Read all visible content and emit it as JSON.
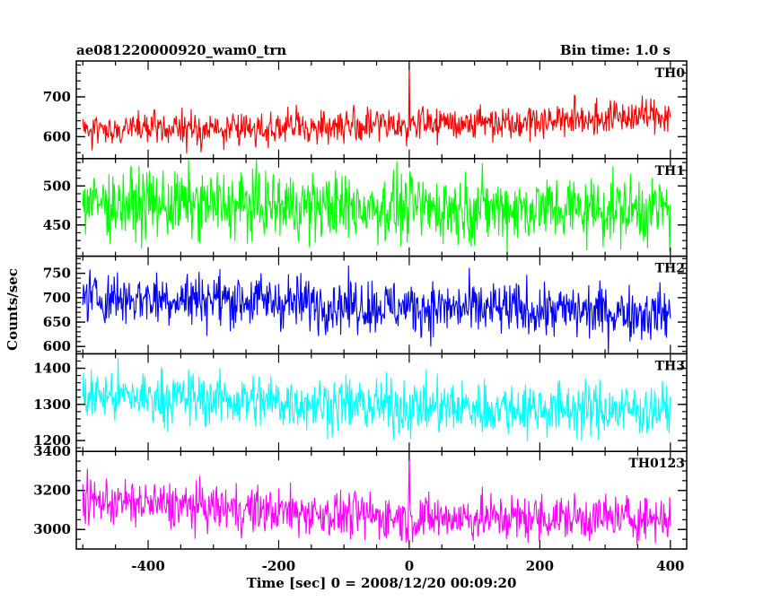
{
  "chart_data": {
    "type": "line",
    "title": "ae081220000920_wam0_trn",
    "subtitle": "Bin time: 1.0 s",
    "xlabel": "Time [sec] 0 = 2008/12/20 00:09:20",
    "ylabel": "Counts/sec",
    "xlim": [
      -510,
      425
    ],
    "x_range": [
      -500,
      400
    ],
    "x_step": 1,
    "x_ticks": [
      -400,
      -200,
      0,
      200,
      400
    ],
    "x_minor_step": 50,
    "panels": [
      {
        "name": "TH0",
        "color": "#ff0000",
        "ylim": [
          545,
          790
        ],
        "y_ticks": [
          600,
          700
        ],
        "y_minor_step": 20,
        "baseline": [
          [
            -500,
            620
          ],
          [
            -300,
            618
          ],
          [
            0,
            632
          ],
          [
            200,
            640
          ],
          [
            400,
            655
          ]
        ],
        "noise": 22,
        "spikes": [
          {
            "x": 0,
            "y": 790
          }
        ]
      },
      {
        "name": "TH1",
        "color": "#00ff00",
        "ylim": [
          410,
          535
        ],
        "y_ticks": [
          450,
          500
        ],
        "y_minor_step": 10,
        "baseline": [
          [
            -500,
            478
          ],
          [
            0,
            472
          ],
          [
            400,
            470
          ]
        ],
        "noise": 22,
        "spikes": []
      },
      {
        "name": "TH2",
        "color": "#0000ff",
        "ylim": [
          585,
          785
        ],
        "y_ticks": [
          600,
          650,
          700,
          750
        ],
        "y_minor_step": 10,
        "baseline": [
          [
            -500,
            700
          ],
          [
            -300,
            698
          ],
          [
            0,
            680
          ],
          [
            400,
            668
          ]
        ],
        "noise": 28,
        "spikes": []
      },
      {
        "name": "TH3",
        "color": "#00ffff",
        "ylim": [
          1170,
          1440
        ],
        "y_ticks": [
          1200,
          1300,
          1400
        ],
        "y_minor_step": 20,
        "baseline": [
          [
            -500,
            1325
          ],
          [
            -300,
            1315
          ],
          [
            0,
            1292
          ],
          [
            400,
            1285
          ]
        ],
        "noise": 38,
        "spikes": []
      },
      {
        "name": "TH0123",
        "color": "#ff00ff",
        "ylim": [
          2900,
          3400
        ],
        "y_ticks": [
          3000,
          3200,
          3400
        ],
        "y_minor_step": 50,
        "baseline": [
          [
            -500,
            3150
          ],
          [
            -300,
            3110
          ],
          [
            0,
            3060
          ],
          [
            400,
            3060
          ]
        ],
        "noise": 60,
        "spikes": [
          {
            "x": 0,
            "y": 3400
          }
        ]
      }
    ]
  }
}
